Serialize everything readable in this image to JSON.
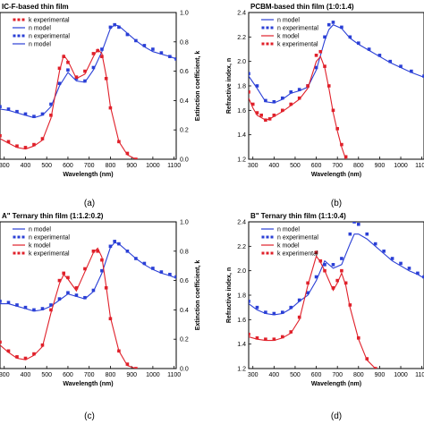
{
  "chart_data": [
    {
      "type": "line",
      "panel": "(a)",
      "title": "IC-F-based thin film",
      "xlabel": "Wavelength (nm)",
      "ylabel": "",
      "y2label": "Extinction coefficient, k",
      "xlim": [
        280,
        1110
      ],
      "xticks": [
        "300",
        "400",
        "500",
        "600",
        "700",
        "800",
        "900",
        "1000",
        "1100"
      ],
      "ylim": [
        1.2,
        2.4
      ],
      "y2lim": [
        0.0,
        1.0
      ],
      "y2ticks": [
        "0.0",
        "0.2",
        "0.4",
        "0.6",
        "0.8",
        "1.0"
      ],
      "legend": [
        "k experimental",
        "n model",
        "n experimental",
        "n model"
      ],
      "series": [
        {
          "name": "n experimental",
          "color": "#2a3fd6",
          "axis": "left",
          "marker": "square",
          "x": [
            280,
            320,
            360,
            400,
            440,
            480,
            520,
            560,
            600,
            640,
            680,
            720,
            760,
            800,
            820,
            840,
            880,
            920,
            960,
            1000,
            1040,
            1080,
            1110
          ],
          "y": [
            1.63,
            1.61,
            1.59,
            1.57,
            1.55,
            1.57,
            1.65,
            1.82,
            1.93,
            1.86,
            1.84,
            1.95,
            2.1,
            2.28,
            2.3,
            2.28,
            2.22,
            2.17,
            2.13,
            2.1,
            2.07,
            2.04,
            2.02
          ]
        },
        {
          "name": "n model",
          "color": "#2a3fd6",
          "axis": "left",
          "marker": "line",
          "x": [
            280,
            320,
            360,
            400,
            440,
            480,
            520,
            560,
            600,
            640,
            680,
            720,
            760,
            800,
            820,
            840,
            880,
            920,
            960,
            1000,
            1040,
            1080,
            1110
          ],
          "y": [
            1.61,
            1.6,
            1.58,
            1.56,
            1.54,
            1.56,
            1.63,
            1.8,
            1.91,
            1.84,
            1.83,
            1.93,
            2.08,
            2.27,
            2.3,
            2.29,
            2.23,
            2.17,
            2.12,
            2.08,
            2.06,
            2.04,
            2.02
          ]
        },
        {
          "name": "k experimental",
          "color": "#e0202a",
          "axis": "right",
          "marker": "square",
          "x": [
            280,
            320,
            360,
            400,
            440,
            480,
            520,
            560,
            580,
            600,
            640,
            680,
            720,
            740,
            760,
            780,
            800,
            840,
            880,
            920
          ],
          "y": [
            0.16,
            0.12,
            0.09,
            0.08,
            0.1,
            0.14,
            0.3,
            0.62,
            0.7,
            0.66,
            0.56,
            0.6,
            0.72,
            0.74,
            0.7,
            0.55,
            0.35,
            0.12,
            0.04,
            0.0
          ]
        },
        {
          "name": "k model",
          "color": "#e0202a",
          "axis": "right",
          "marker": "line",
          "x": [
            280,
            320,
            360,
            400,
            440,
            480,
            520,
            560,
            580,
            600,
            640,
            680,
            720,
            740,
            760,
            780,
            800,
            840,
            880,
            920
          ],
          "y": [
            0.14,
            0.11,
            0.08,
            0.07,
            0.09,
            0.13,
            0.28,
            0.6,
            0.71,
            0.67,
            0.55,
            0.58,
            0.7,
            0.75,
            0.72,
            0.57,
            0.36,
            0.12,
            0.03,
            0.0
          ]
        }
      ]
    },
    {
      "type": "line",
      "panel": "(b)",
      "title": "PCBM-based thin film (1:0:1.4)",
      "xlabel": "Wavelength (nm)",
      "ylabel": "Refractive index, n",
      "xlim": [
        280,
        1110
      ],
      "xticks": [
        "300",
        "400",
        "500",
        "600",
        "700",
        "800",
        "900",
        "1000",
        "1100"
      ],
      "ylim": [
        1.2,
        2.4
      ],
      "yticks": [
        "1.2",
        "1.4",
        "1.6",
        "1.8",
        "2.0",
        "2.2",
        "2.4"
      ],
      "legend": [
        "n model",
        "n experimental",
        "k model",
        "k experimental"
      ],
      "series": [
        {
          "name": "n experimental",
          "color": "#2a3fd6",
          "axis": "left",
          "marker": "square",
          "x": [
            280,
            320,
            360,
            400,
            440,
            480,
            520,
            560,
            600,
            640,
            660,
            680,
            720,
            760,
            800,
            850,
            900,
            950,
            1000,
            1050,
            1110
          ],
          "y": [
            1.9,
            1.8,
            1.68,
            1.67,
            1.7,
            1.75,
            1.77,
            1.8,
            1.95,
            2.2,
            2.3,
            2.32,
            2.28,
            2.2,
            2.15,
            2.1,
            2.05,
            2.0,
            1.96,
            1.92,
            1.88
          ]
        },
        {
          "name": "n model",
          "color": "#2a3fd6",
          "axis": "left",
          "marker": "line",
          "x": [
            280,
            320,
            360,
            400,
            440,
            480,
            520,
            560,
            600,
            640,
            660,
            680,
            720,
            760,
            800,
            850,
            900,
            950,
            1000,
            1050,
            1110
          ],
          "y": [
            1.88,
            1.78,
            1.67,
            1.66,
            1.69,
            1.74,
            1.76,
            1.79,
            1.93,
            2.17,
            2.26,
            2.3,
            2.27,
            2.19,
            2.14,
            2.09,
            2.04,
            1.99,
            1.95,
            1.91,
            1.87
          ]
        },
        {
          "name": "k experimental",
          "color": "#e0202a",
          "axis": "left",
          "marker": "square",
          "x": [
            280,
            300,
            320,
            340,
            360,
            380,
            400,
            440,
            480,
            520,
            560,
            600,
            620,
            640,
            660,
            680,
            700,
            720,
            740,
            760
          ],
          "y": [
            1.75,
            1.65,
            1.58,
            1.56,
            1.52,
            1.53,
            1.56,
            1.6,
            1.65,
            1.7,
            1.8,
            2.05,
            2.08,
            1.96,
            1.8,
            1.6,
            1.45,
            1.32,
            1.22,
            1.15
          ]
        },
        {
          "name": "k model",
          "color": "#e0202a",
          "axis": "left",
          "marker": "line",
          "x": [
            280,
            300,
            320,
            340,
            360,
            380,
            400,
            440,
            480,
            520,
            560,
            600,
            620,
            640,
            660,
            680,
            700,
            720,
            740,
            760
          ],
          "y": [
            1.7,
            1.62,
            1.56,
            1.54,
            1.52,
            1.53,
            1.55,
            1.59,
            1.64,
            1.69,
            1.78,
            2.0,
            2.04,
            1.95,
            1.78,
            1.58,
            1.43,
            1.3,
            1.2,
            1.14
          ]
        }
      ]
    },
    {
      "type": "line",
      "panel": "(c)",
      "title": "A\" Ternary thin film (1:1.2:0.2)",
      "xlabel": "Wavelength (nm)",
      "ylabel": "",
      "y2label": "Extinction coefficient, k",
      "xlim": [
        280,
        1110
      ],
      "xticks": [
        "300",
        "400",
        "500",
        "600",
        "700",
        "800",
        "900",
        "1000",
        "1100"
      ],
      "ylim": [
        1.2,
        2.4
      ],
      "y2lim": [
        0.0,
        1.0
      ],
      "y2ticks": [
        "0.0",
        "0.2",
        "0.4",
        "0.6",
        "0.8",
        "1.0"
      ],
      "legend": [
        "n model",
        "n experimental",
        "k model",
        "k experimental"
      ],
      "series": [
        {
          "name": "n experimental",
          "color": "#2a3fd6",
          "axis": "left",
          "marker": "square",
          "x": [
            280,
            320,
            360,
            400,
            440,
            480,
            520,
            560,
            600,
            640,
            680,
            720,
            760,
            800,
            820,
            840,
            880,
            920,
            960,
            1000,
            1040,
            1080,
            1110
          ],
          "y": [
            1.75,
            1.74,
            1.72,
            1.7,
            1.68,
            1.69,
            1.72,
            1.77,
            1.82,
            1.8,
            1.78,
            1.84,
            2.0,
            2.2,
            2.24,
            2.22,
            2.16,
            2.1,
            2.06,
            2.02,
            1.99,
            1.97,
            1.95
          ]
        },
        {
          "name": "n model",
          "color": "#2a3fd6",
          "axis": "left",
          "marker": "line",
          "x": [
            280,
            320,
            360,
            400,
            440,
            480,
            520,
            560,
            600,
            640,
            680,
            720,
            760,
            800,
            820,
            840,
            880,
            920,
            960,
            1000,
            1040,
            1080,
            1110
          ],
          "y": [
            1.73,
            1.73,
            1.71,
            1.69,
            1.67,
            1.68,
            1.71,
            1.76,
            1.81,
            1.79,
            1.77,
            1.83,
            1.98,
            2.19,
            2.23,
            2.22,
            2.16,
            2.1,
            2.05,
            2.01,
            1.98,
            1.96,
            1.94
          ]
        },
        {
          "name": "k experimental",
          "color": "#e0202a",
          "axis": "right",
          "marker": "square",
          "x": [
            280,
            320,
            360,
            400,
            440,
            480,
            520,
            560,
            580,
            600,
            640,
            680,
            720,
            740,
            760,
            780,
            800,
            840,
            880,
            920
          ],
          "y": [
            0.18,
            0.12,
            0.08,
            0.07,
            0.1,
            0.16,
            0.4,
            0.6,
            0.65,
            0.62,
            0.55,
            0.68,
            0.8,
            0.8,
            0.74,
            0.55,
            0.34,
            0.12,
            0.03,
            0.0
          ]
        },
        {
          "name": "k model",
          "color": "#e0202a",
          "axis": "right",
          "marker": "line",
          "x": [
            280,
            320,
            360,
            400,
            440,
            480,
            520,
            560,
            580,
            600,
            640,
            680,
            720,
            740,
            760,
            780,
            800,
            840,
            880,
            920
          ],
          "y": [
            0.16,
            0.11,
            0.07,
            0.06,
            0.09,
            0.15,
            0.38,
            0.58,
            0.64,
            0.61,
            0.53,
            0.66,
            0.79,
            0.82,
            0.76,
            0.56,
            0.35,
            0.12,
            0.02,
            0.0
          ]
        }
      ]
    },
    {
      "type": "line",
      "panel": "(d)",
      "title": "B\" Ternary thin film (1:1:0.4)",
      "xlabel": "Wavelength (nm)",
      "ylabel": "Refractive index, n",
      "xlim": [
        280,
        1110
      ],
      "xticks": [
        "300",
        "400",
        "500",
        "600",
        "700",
        "800",
        "900",
        "1000",
        "1100"
      ],
      "ylim": [
        1.2,
        2.4
      ],
      "yticks": [
        "1.2",
        "1.4",
        "1.6",
        "1.8",
        "2.0",
        "2.2",
        "2.4"
      ],
      "legend": [
        "n model",
        "n experimental",
        "k model",
        "k experimental"
      ],
      "series": [
        {
          "name": "n experimental",
          "color": "#2a3fd6",
          "axis": "left",
          "marker": "square",
          "x": [
            280,
            320,
            360,
            400,
            440,
            480,
            520,
            560,
            600,
            640,
            680,
            720,
            760,
            780,
            800,
            840,
            880,
            920,
            960,
            1000,
            1040,
            1080,
            1110
          ],
          "y": [
            1.75,
            1.7,
            1.66,
            1.65,
            1.66,
            1.7,
            1.76,
            1.82,
            1.95,
            2.05,
            2.05,
            2.1,
            2.3,
            2.4,
            2.38,
            2.3,
            2.22,
            2.16,
            2.1,
            2.06,
            2.02,
            1.98,
            1.95
          ]
        },
        {
          "name": "n model",
          "color": "#2a3fd6",
          "axis": "left",
          "marker": "line",
          "x": [
            280,
            320,
            360,
            400,
            440,
            480,
            520,
            560,
            600,
            640,
            680,
            720,
            760,
            780,
            800,
            840,
            880,
            920,
            960,
            1000,
            1040,
            1080,
            1110
          ],
          "y": [
            1.73,
            1.68,
            1.65,
            1.64,
            1.65,
            1.69,
            1.75,
            1.8,
            1.92,
            2.08,
            2.02,
            2.05,
            2.22,
            2.3,
            2.3,
            2.26,
            2.2,
            2.14,
            2.08,
            2.04,
            2.0,
            1.97,
            1.94
          ]
        },
        {
          "name": "k experimental",
          "color": "#e0202a",
          "axis": "left",
          "marker": "square",
          "x": [
            280,
            320,
            360,
            400,
            440,
            480,
            520,
            560,
            600,
            620,
            640,
            680,
            700,
            720,
            740,
            760,
            800,
            840,
            880
          ],
          "y": [
            1.48,
            1.45,
            1.44,
            1.44,
            1.46,
            1.5,
            1.62,
            1.9,
            2.15,
            2.08,
            2.0,
            1.86,
            1.92,
            2.0,
            1.9,
            1.72,
            1.45,
            1.28,
            1.2
          ]
        },
        {
          "name": "k model",
          "color": "#e0202a",
          "axis": "left",
          "marker": "line",
          "x": [
            280,
            320,
            360,
            400,
            440,
            480,
            520,
            560,
            600,
            620,
            640,
            680,
            700,
            720,
            740,
            760,
            800,
            840,
            880
          ],
          "y": [
            1.46,
            1.44,
            1.43,
            1.43,
            1.45,
            1.49,
            1.6,
            1.88,
            2.12,
            2.07,
            2.0,
            1.84,
            1.9,
            1.98,
            1.88,
            1.7,
            1.44,
            1.27,
            1.2
          ]
        }
      ]
    }
  ],
  "captions": [
    "(a)",
    "(b)",
    "(c)",
    "(d)"
  ],
  "colors": {
    "n": "#2a3fd6",
    "k": "#e0202a"
  }
}
